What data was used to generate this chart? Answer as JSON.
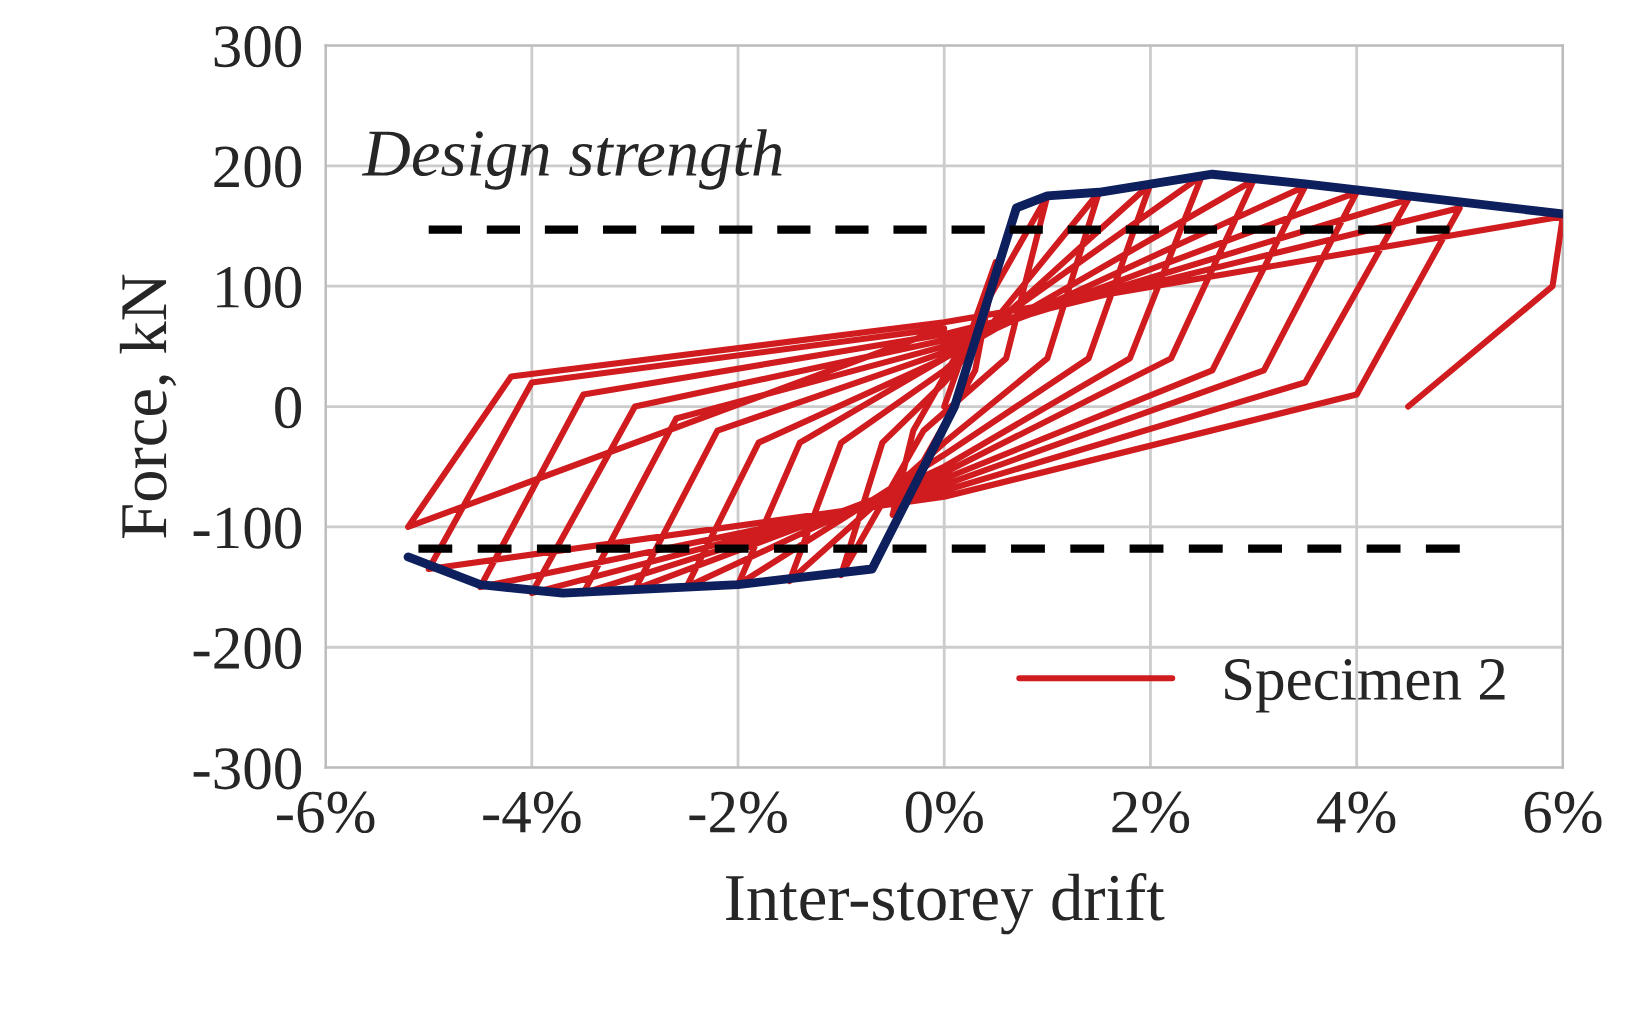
{
  "chart_data": {
    "type": "line",
    "xlabel": "Inter-storey drift",
    "ylabel": "Force, kN",
    "xlim": [
      -6,
      6
    ],
    "ylim": [
      -300,
      300
    ],
    "xticks": [
      {
        "value": -6,
        "label": "-6%"
      },
      {
        "value": -4,
        "label": "-4%"
      },
      {
        "value": -2,
        "label": "-2%"
      },
      {
        "value": 0,
        "label": "0%"
      },
      {
        "value": 2,
        "label": "2%"
      },
      {
        "value": 4,
        "label": "4%"
      },
      {
        "value": 6,
        "label": "6%"
      }
    ],
    "yticks": [
      -300,
      -200,
      -100,
      0,
      100,
      200,
      300
    ],
    "grid": true,
    "legend": "bottom right",
    "marker": "none",
    "annotations": [
      "Design strength"
    ],
    "series": [
      {
        "name": "Specimen 2",
        "color": "#d01c1f",
        "line_style": "solid",
        "x": [
          0,
          0.5,
          0.3,
          -0.5,
          -0.3,
          1,
          0.6,
          -0.2,
          -1,
          -0.6,
          0,
          1.5,
          1.0,
          0,
          -1.5,
          -1,
          0,
          2,
          1.4,
          0,
          -2,
          -1.4,
          0,
          2.5,
          1.8,
          0,
          -2.5,
          -1.8,
          0,
          3,
          2.2,
          0,
          -3,
          -2.2,
          0,
          3.5,
          2.6,
          0,
          -3.5,
          -2.6,
          0,
          4,
          3.1,
          0,
          -4,
          -3,
          0,
          4.5,
          3.5,
          0,
          -4.5,
          -3.5,
          0,
          5,
          4,
          0,
          -5,
          -4,
          0,
          -5.2,
          -4.2,
          0,
          6,
          5.9,
          4.5
        ],
        "values": [
          0,
          120,
          30,
          -90,
          -20,
          175,
          40,
          -20,
          -140,
          -30,
          20,
          178,
          40,
          -30,
          -145,
          -30,
          30,
          185,
          40,
          -40,
          -148,
          -30,
          40,
          192,
          40,
          -50,
          -150,
          -30,
          40,
          188,
          40,
          -55,
          -152,
          -20,
          45,
          183,
          30,
          -60,
          -155,
          -10,
          50,
          178,
          30,
          -65,
          -155,
          0,
          55,
          172,
          20,
          -70,
          -150,
          10,
          60,
          165,
          10,
          -75,
          -135,
          20,
          65,
          -100,
          25,
          70,
          158,
          100,
          0
        ]
      },
      {
        "color": "#0d1f5c",
        "line_style": "solid",
        "x": [
          -5.2,
          -4.5,
          -3.7,
          -2,
          -0.7,
          0.1,
          0.7,
          1.0,
          1.5,
          2.6,
          3.5,
          5,
          6
        ],
        "values": [
          -125,
          -148,
          -155,
          -148,
          -135,
          0,
          165,
          175,
          178,
          193,
          185,
          170,
          160
        ]
      },
      {
        "color": "#000000",
        "line_style": "dashed",
        "x": [
          -5,
          4.9
        ],
        "values": [
          147,
          147
        ]
      },
      {
        "color": "#000000",
        "line_style": "dashed",
        "x": [
          -5.1,
          5
        ],
        "values": [
          -118,
          -118
        ]
      }
    ]
  }
}
